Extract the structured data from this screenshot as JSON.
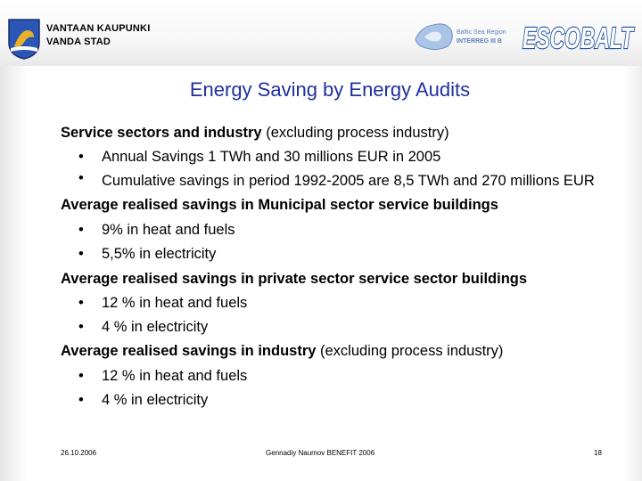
{
  "header": {
    "city_fi": "VANTAAN KAUPUNKI",
    "city_sv": "VANDA STAD",
    "interreg_line1": "Baltic Sea Region",
    "interreg_line2": "INTERREG III B",
    "project_logo": "ESCOBALT",
    "colors": {
      "logo_blue": "#1a4fa0",
      "title_blue": "#1f2f9e"
    }
  },
  "title": "Energy Saving by Energy Audits",
  "sections": [
    {
      "heading_bold": "Service sectors and industry",
      "heading_rest": " (excluding process industry)",
      "bullets": [
        "Annual Savings 1 TWh and 30 millions EUR in 2005",
        "Cumulative savings in period 1992-2005 are 8,5 TWh and 270 millions EUR"
      ]
    },
    {
      "heading_bold": "Average realised savings in Municipal sector service buildings",
      "heading_rest": "",
      "bullets": [
        "9% in heat and fuels",
        "5,5% in electricity"
      ]
    },
    {
      "heading_bold": "Average realised savings in  private sector service sector buildings",
      "heading_rest": "",
      "bullets": [
        "12 % in heat and fuels",
        "4 % in electricity"
      ]
    },
    {
      "heading_bold": "Average realised savings in  industry",
      "heading_rest": " (excluding process industry)",
      "bullets": [
        "12 % in heat and fuels",
        "4 % in electricity"
      ]
    }
  ],
  "bullet_glyph": "•",
  "footer": {
    "date": "26.10.2006",
    "author": "Gennadiy Naumov   BENEFIT 2006",
    "page": "18"
  }
}
